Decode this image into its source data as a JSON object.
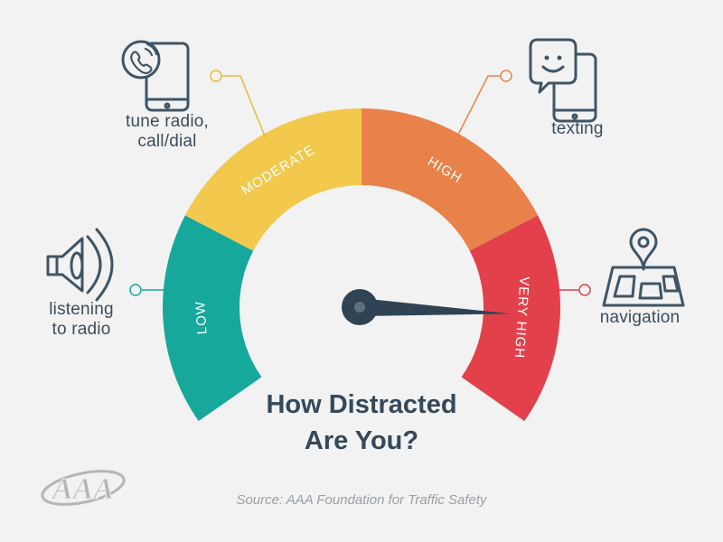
{
  "title_lines": [
    "How Distracted",
    "Are You?"
  ],
  "source": {
    "prefix": "Source:",
    "name": "AAA Foundation for Traffic Safety"
  },
  "logo_text": "AAA",
  "gauge": {
    "needle_level": 0.87,
    "segments": [
      {
        "label": "LOW",
        "color": "#17a89c"
      },
      {
        "label": "MODERATE",
        "color": "#f2c94c"
      },
      {
        "label": "HIGH",
        "color": "#e9824a"
      },
      {
        "label": "VERY HIGH",
        "color": "#e2414c"
      }
    ]
  },
  "activities": [
    {
      "label": "listening\nto radio",
      "icon": "speaker-icon",
      "level": "LOW"
    },
    {
      "label": "tune radio,\ncall/dial",
      "icon": "phone-call-icon",
      "level": "MODERATE"
    },
    {
      "label": "texting",
      "icon": "phone-texting-icon",
      "level": "HIGH"
    },
    {
      "label": "navigation",
      "icon": "map-pin-icon",
      "level": "VERY HIGH"
    }
  ],
  "colors": {
    "text": "#34495a",
    "icon_stroke": "#3f5566",
    "needle": "#2f4354",
    "background": "#f2f2f2"
  }
}
